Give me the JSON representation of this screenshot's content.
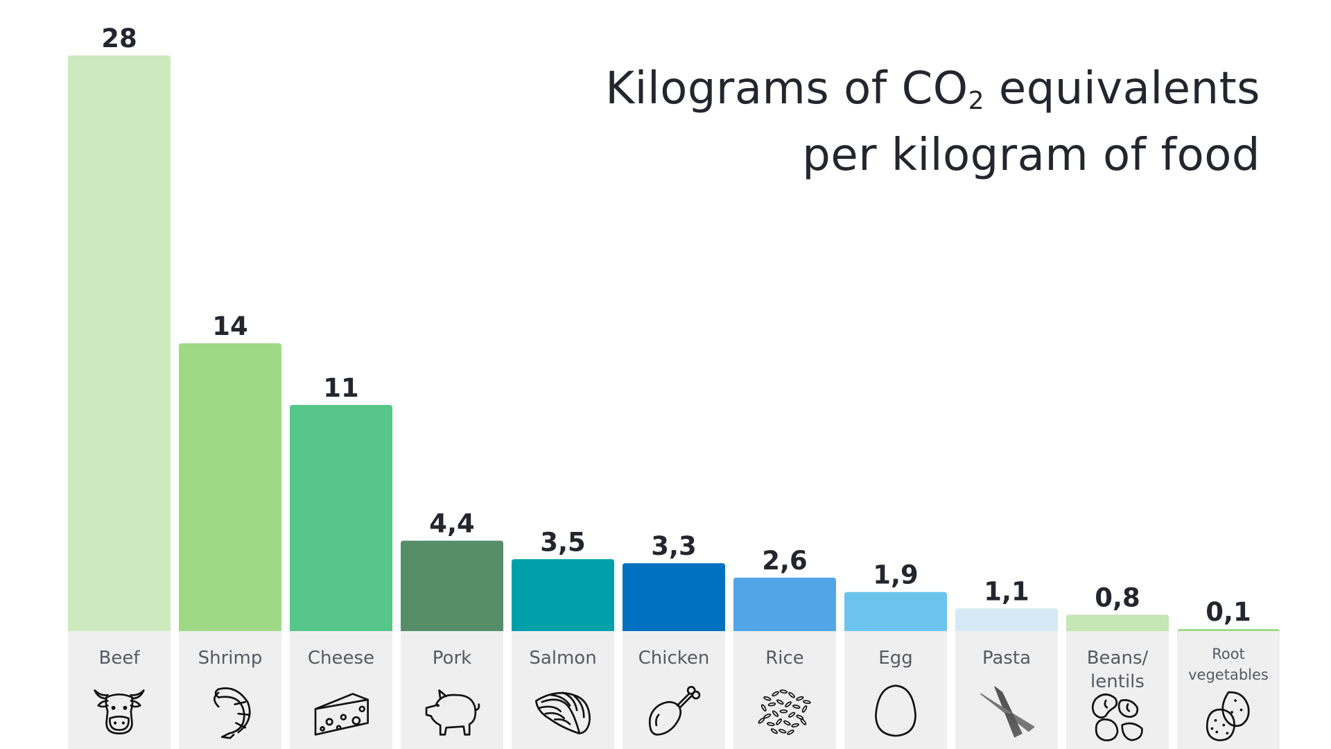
{
  "title": {
    "line1_prefix": "Kilograms of CO",
    "line1_sub": "2",
    "line1_suffix": " equivalents",
    "line2": "per kilogram of food"
  },
  "chart_data": {
    "type": "bar",
    "title": "Kilograms of CO2 equivalents per kilogram of food",
    "categories": [
      {
        "label_lines": [
          "Beef"
        ],
        "icon": "cow-icon"
      },
      {
        "label_lines": [
          "Shrimp"
        ],
        "icon": "shrimp-icon"
      },
      {
        "label_lines": [
          "Cheese"
        ],
        "icon": "cheese-icon"
      },
      {
        "label_lines": [
          "Pork"
        ],
        "icon": "pig-icon"
      },
      {
        "label_lines": [
          "Salmon"
        ],
        "icon": "salmon-fillet-icon"
      },
      {
        "label_lines": [
          "Chicken"
        ],
        "icon": "chicken-leg-icon"
      },
      {
        "label_lines": [
          "Rice"
        ],
        "icon": "rice-grains-icon"
      },
      {
        "label_lines": [
          "Egg"
        ],
        "icon": "egg-icon"
      },
      {
        "label_lines": [
          "Pasta"
        ],
        "icon": "pasta-icon"
      },
      {
        "label_lines": [
          "Beans/",
          "lentils"
        ],
        "icon": "beans-icon"
      },
      {
        "label_lines": [
          "Root",
          "vegetables"
        ],
        "icon": "potato-icon"
      }
    ],
    "values": [
      28,
      14,
      11,
      4.4,
      3.5,
      3.3,
      2.6,
      1.9,
      1.1,
      0.8,
      0.1
    ],
    "value_labels": [
      "28",
      "14",
      "11",
      "4,4",
      "3,5",
      "3,3",
      "2,6",
      "1,9",
      "1,1",
      "0,8",
      "0,1"
    ],
    "colors": [
      "#cde9be",
      "#a0d985",
      "#56c689",
      "#568d69",
      "#00a0ab",
      "#0070c0",
      "#52a6e8",
      "#6cc4ec",
      "#d5e9f5",
      "#c4e7b5",
      "#a0d985"
    ],
    "label_panel_color": "#efefef",
    "ylim": [
      0,
      28
    ],
    "grid": false,
    "legend": "none"
  }
}
